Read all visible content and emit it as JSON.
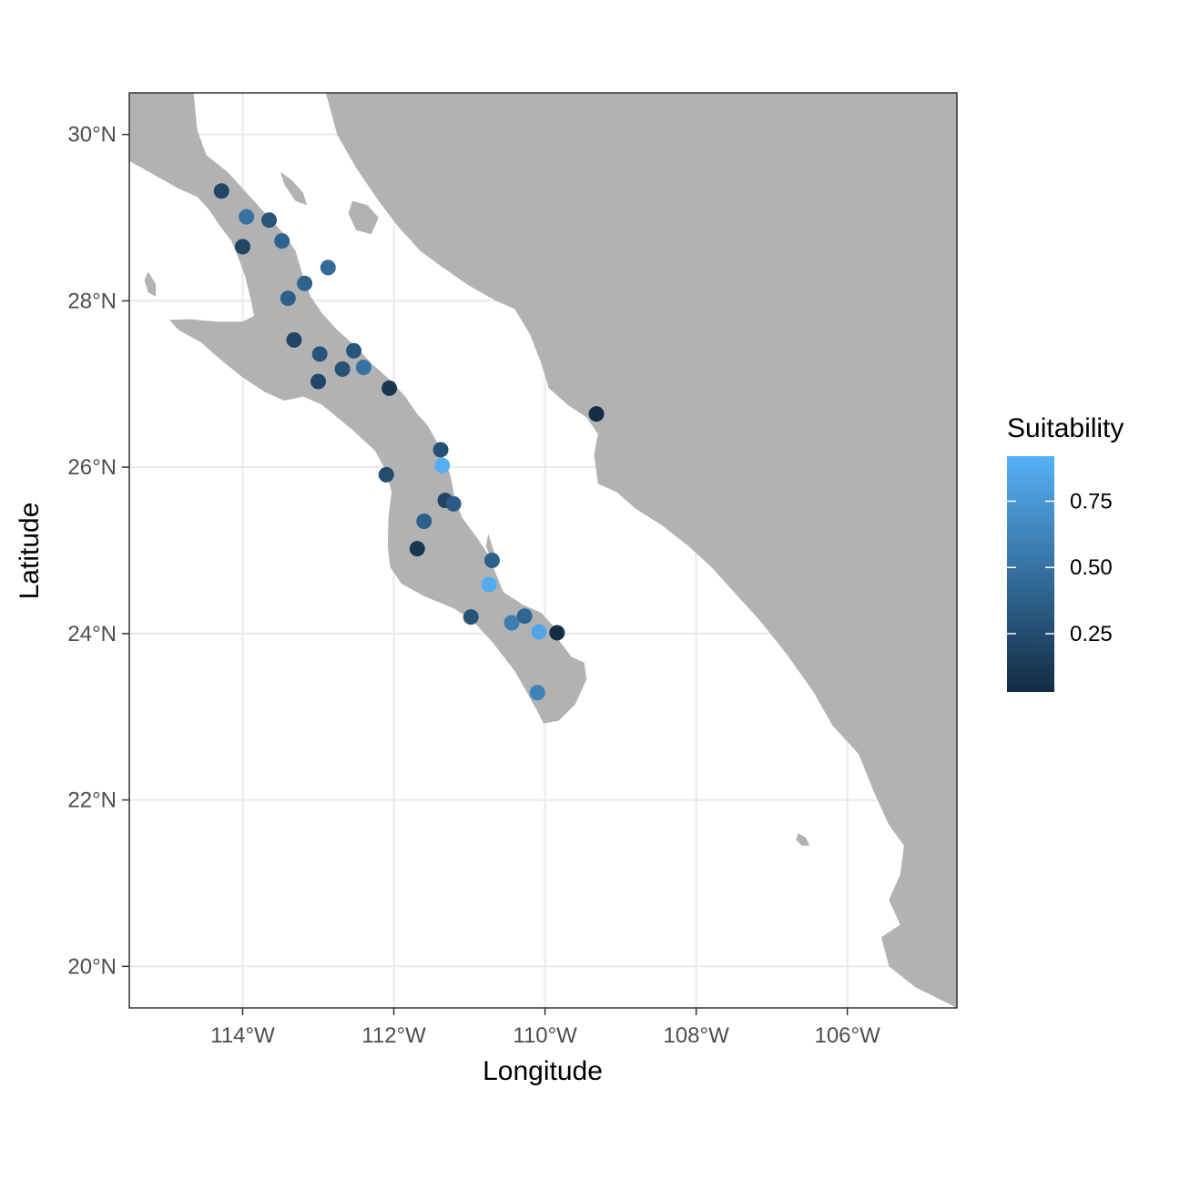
{
  "chart_data": {
    "type": "scatter",
    "title": "",
    "xlabel": "Longitude",
    "ylabel": "Latitude",
    "xlim": [
      -115.5,
      -104.55
    ],
    "ylim": [
      19.5,
      30.5
    ],
    "x_ticks": [
      {
        "value": -114,
        "label": "114°W"
      },
      {
        "value": -112,
        "label": "112°W"
      },
      {
        "value": -110,
        "label": "110°W"
      },
      {
        "value": -108,
        "label": "108°W"
      },
      {
        "value": -106,
        "label": "106°W"
      }
    ],
    "y_ticks": [
      {
        "value": 20,
        "label": "20°N"
      },
      {
        "value": 22,
        "label": "22°N"
      },
      {
        "value": 24,
        "label": "24°N"
      },
      {
        "value": 26,
        "label": "26°N"
      },
      {
        "value": 28,
        "label": "28°N"
      },
      {
        "value": 30,
        "label": "30°N"
      }
    ],
    "grid": true,
    "colors": {
      "land": "#b2b2b2",
      "sea": "#ffffff",
      "grid": "#ebebeb",
      "low": "#132b43",
      "high": "#56b1f7"
    },
    "legend": {
      "title": "Suitability",
      "position": "right",
      "range": [
        0.03,
        0.92
      ],
      "ticks": [
        {
          "value": 0.25,
          "label": "0.25"
        },
        {
          "value": 0.5,
          "label": "0.50"
        },
        {
          "value": 0.75,
          "label": "0.75"
        }
      ]
    },
    "points": [
      {
        "lon": -114.28,
        "lat": 29.32,
        "suitability": 0.2
      },
      {
        "lon": -113.95,
        "lat": 29.01,
        "suitability": 0.5
      },
      {
        "lon": -113.65,
        "lat": 28.97,
        "suitability": 0.3
      },
      {
        "lon": -114.0,
        "lat": 28.65,
        "suitability": 0.2
      },
      {
        "lon": -113.48,
        "lat": 28.72,
        "suitability": 0.4
      },
      {
        "lon": -112.87,
        "lat": 28.4,
        "suitability": 0.45
      },
      {
        "lon": -113.18,
        "lat": 28.21,
        "suitability": 0.4
      },
      {
        "lon": -113.4,
        "lat": 28.03,
        "suitability": 0.38
      },
      {
        "lon": -113.32,
        "lat": 27.53,
        "suitability": 0.2
      },
      {
        "lon": -112.98,
        "lat": 27.36,
        "suitability": 0.3
      },
      {
        "lon": -112.53,
        "lat": 27.4,
        "suitability": 0.3
      },
      {
        "lon": -112.68,
        "lat": 27.18,
        "suitability": 0.28
      },
      {
        "lon": -112.4,
        "lat": 27.2,
        "suitability": 0.5
      },
      {
        "lon": -113.0,
        "lat": 27.03,
        "suitability": 0.22
      },
      {
        "lon": -112.06,
        "lat": 26.95,
        "suitability": 0.1
      },
      {
        "lon": -111.38,
        "lat": 26.21,
        "suitability": 0.28
      },
      {
        "lon": -111.36,
        "lat": 26.02,
        "suitability": 0.9
      },
      {
        "lon": -112.1,
        "lat": 25.91,
        "suitability": 0.25
      },
      {
        "lon": -111.32,
        "lat": 25.6,
        "suitability": 0.2
      },
      {
        "lon": -111.21,
        "lat": 25.56,
        "suitability": 0.35
      },
      {
        "lon": -111.6,
        "lat": 25.35,
        "suitability": 0.38
      },
      {
        "lon": -111.69,
        "lat": 25.02,
        "suitability": 0.1
      },
      {
        "lon": -110.7,
        "lat": 24.88,
        "suitability": 0.38
      },
      {
        "lon": -110.74,
        "lat": 24.59,
        "suitability": 0.88
      },
      {
        "lon": -110.98,
        "lat": 24.2,
        "suitability": 0.3
      },
      {
        "lon": -110.44,
        "lat": 24.13,
        "suitability": 0.58
      },
      {
        "lon": -110.27,
        "lat": 24.21,
        "suitability": 0.42
      },
      {
        "lon": -110.08,
        "lat": 24.02,
        "suitability": 0.85
      },
      {
        "lon": -109.84,
        "lat": 24.01,
        "suitability": 0.05
      },
      {
        "lon": -110.1,
        "lat": 23.29,
        "suitability": 0.6
      },
      {
        "lon": -109.32,
        "lat": 26.64,
        "suitability": 0.05
      }
    ],
    "land_polygons": [
      {
        "name": "baja-peninsula",
        "coords": [
          [
            -115.5,
            29.68
          ],
          [
            -115.2,
            29.53
          ],
          [
            -114.85,
            29.35
          ],
          [
            -114.6,
            29.25
          ],
          [
            -114.45,
            29.1
          ],
          [
            -114.3,
            28.9
          ],
          [
            -114.15,
            28.72
          ],
          [
            -114.05,
            28.5
          ],
          [
            -113.97,
            28.3
          ],
          [
            -113.9,
            28.05
          ],
          [
            -113.85,
            27.82
          ],
          [
            -114.0,
            27.75
          ],
          [
            -114.35,
            27.75
          ],
          [
            -114.7,
            27.78
          ],
          [
            -114.97,
            27.77
          ],
          [
            -114.85,
            27.65
          ],
          [
            -114.55,
            27.5
          ],
          [
            -114.3,
            27.3
          ],
          [
            -114.0,
            27.08
          ],
          [
            -113.7,
            26.9
          ],
          [
            -113.45,
            26.8
          ],
          [
            -113.2,
            26.85
          ],
          [
            -112.95,
            26.75
          ],
          [
            -112.55,
            26.45
          ],
          [
            -112.25,
            26.2
          ],
          [
            -112.1,
            25.95
          ],
          [
            -112.03,
            25.7
          ],
          [
            -112.07,
            25.4
          ],
          [
            -112.08,
            25.05
          ],
          [
            -112.05,
            24.8
          ],
          [
            -111.9,
            24.6
          ],
          [
            -111.6,
            24.45
          ],
          [
            -111.2,
            24.3
          ],
          [
            -110.95,
            24.15
          ],
          [
            -110.7,
            23.9
          ],
          [
            -110.4,
            23.55
          ],
          [
            -110.12,
            23.1
          ],
          [
            -110.02,
            22.92
          ],
          [
            -109.82,
            22.95
          ],
          [
            -109.6,
            23.15
          ],
          [
            -109.45,
            23.45
          ],
          [
            -109.48,
            23.65
          ],
          [
            -109.65,
            23.72
          ],
          [
            -109.8,
            23.9
          ],
          [
            -109.9,
            24.1
          ],
          [
            -110.05,
            24.25
          ],
          [
            -110.3,
            24.35
          ],
          [
            -110.55,
            24.5
          ],
          [
            -110.65,
            24.72
          ],
          [
            -110.75,
            24.95
          ],
          [
            -110.9,
            25.15
          ],
          [
            -111.1,
            25.4
          ],
          [
            -111.2,
            25.65
          ],
          [
            -111.25,
            25.9
          ],
          [
            -111.4,
            26.25
          ],
          [
            -111.55,
            26.5
          ],
          [
            -111.7,
            26.65
          ],
          [
            -111.85,
            26.85
          ],
          [
            -112.05,
            27.05
          ],
          [
            -112.3,
            27.25
          ],
          [
            -112.5,
            27.45
          ],
          [
            -112.75,
            27.65
          ],
          [
            -112.95,
            27.85
          ],
          [
            -113.1,
            28.05
          ],
          [
            -113.22,
            28.35
          ],
          [
            -113.3,
            28.6
          ],
          [
            -113.45,
            28.8
          ],
          [
            -113.7,
            29.05
          ],
          [
            -113.95,
            29.3
          ],
          [
            -114.2,
            29.55
          ],
          [
            -114.48,
            29.75
          ],
          [
            -114.6,
            30.05
          ],
          [
            -114.65,
            30.5
          ],
          [
            -115.5,
            30.5
          ]
        ]
      },
      {
        "name": "mainland-mexico",
        "coords": [
          [
            -112.9,
            30.5
          ],
          [
            -112.75,
            30.0
          ],
          [
            -112.5,
            29.6
          ],
          [
            -112.2,
            29.2
          ],
          [
            -111.95,
            28.9
          ],
          [
            -111.65,
            28.6
          ],
          [
            -111.35,
            28.4
          ],
          [
            -111.0,
            28.18
          ],
          [
            -110.65,
            28.0
          ],
          [
            -110.4,
            27.9
          ],
          [
            -110.2,
            27.6
          ],
          [
            -110.05,
            27.25
          ],
          [
            -109.95,
            26.95
          ],
          [
            -109.7,
            26.75
          ],
          [
            -109.45,
            26.6
          ],
          [
            -109.3,
            26.4
          ],
          [
            -109.35,
            26.15
          ],
          [
            -109.3,
            25.8
          ],
          [
            -109.05,
            25.7
          ],
          [
            -108.8,
            25.5
          ],
          [
            -108.45,
            25.3
          ],
          [
            -108.1,
            25.05
          ],
          [
            -107.8,
            24.8
          ],
          [
            -107.5,
            24.5
          ],
          [
            -107.15,
            24.15
          ],
          [
            -106.8,
            23.75
          ],
          [
            -106.45,
            23.3
          ],
          [
            -106.2,
            22.9
          ],
          [
            -105.85,
            22.55
          ],
          [
            -105.65,
            22.1
          ],
          [
            -105.45,
            21.7
          ],
          [
            -105.25,
            21.45
          ],
          [
            -105.3,
            21.1
          ],
          [
            -105.45,
            20.8
          ],
          [
            -105.3,
            20.5
          ],
          [
            -105.55,
            20.35
          ],
          [
            -105.45,
            20.0
          ],
          [
            -105.1,
            19.75
          ],
          [
            -104.55,
            19.5
          ],
          [
            -104.55,
            30.5
          ]
        ]
      },
      {
        "name": "isla-tiburon",
        "coords": [
          [
            -112.55,
            29.2
          ],
          [
            -112.35,
            29.15
          ],
          [
            -112.2,
            29.0
          ],
          [
            -112.3,
            28.8
          ],
          [
            -112.5,
            28.85
          ],
          [
            -112.6,
            29.05
          ]
        ]
      },
      {
        "name": "isla-angel-de-la-guarda",
        "coords": [
          [
            -113.5,
            29.55
          ],
          [
            -113.35,
            29.45
          ],
          [
            -113.2,
            29.3
          ],
          [
            -113.15,
            29.15
          ],
          [
            -113.3,
            29.2
          ],
          [
            -113.45,
            29.4
          ]
        ]
      },
      {
        "name": "isla-cedros",
        "coords": [
          [
            -115.25,
            28.35
          ],
          [
            -115.15,
            28.2
          ],
          [
            -115.15,
            28.05
          ],
          [
            -115.25,
            28.1
          ],
          [
            -115.3,
            28.25
          ]
        ]
      },
      {
        "name": "isla-san-jose",
        "coords": [
          [
            -110.75,
            25.2
          ],
          [
            -110.68,
            25.0
          ],
          [
            -110.62,
            24.88
          ],
          [
            -110.7,
            24.85
          ],
          [
            -110.78,
            25.05
          ]
        ]
      },
      {
        "name": "islas-marias",
        "coords": [
          [
            -106.65,
            21.6
          ],
          [
            -106.55,
            21.55
          ],
          [
            -106.5,
            21.45
          ],
          [
            -106.6,
            21.45
          ],
          [
            -106.68,
            21.52
          ]
        ]
      }
    ]
  }
}
